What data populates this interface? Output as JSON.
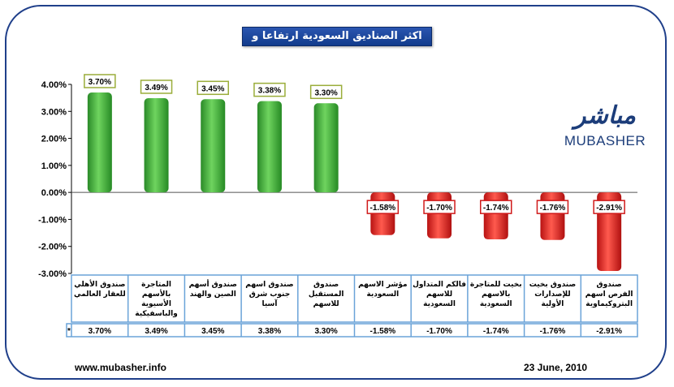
{
  "chart_data": {
    "type": "bar",
    "title": "اكثر الصناديق السعودية ارتفاعا و تراجعا",
    "categories": [
      [
        "صندوق الأهلي",
        "للعقار العالمي"
      ],
      [
        "المتاجرة",
        "بالأسهم",
        "الأسيوية",
        "والباسفيكية"
      ],
      [
        "صندوق أسهم",
        "الصين والهند"
      ],
      [
        "صندوق اسهم",
        "جنوب شرق",
        "آسيا"
      ],
      [
        "صندوق",
        "المستقبل",
        "للاسهم"
      ],
      [
        "مؤشر الاسهم",
        "السعودية"
      ],
      [
        "فالكم المتداول",
        "للاسهم",
        "السعودية"
      ],
      [
        "بخيت للمتاجرة",
        "بالاسهم",
        "السعودية"
      ],
      [
        "صندوق بخيت",
        "للإصدارات",
        "الأولية"
      ],
      [
        "صندوق",
        "الفرص اسهم",
        "البتروكيماوية"
      ]
    ],
    "values": [
      3.7,
      3.49,
      3.45,
      3.38,
      3.3,
      -1.58,
      -1.7,
      -1.74,
      -1.76,
      -2.91
    ],
    "data_labels": [
      "3.70%",
      "3.49%",
      "3.45%",
      "3.38%",
      "3.30%",
      "-1.58%",
      "-1.70%",
      "-1.74%",
      "-1.76%",
      "-2.91%"
    ],
    "table_values": [
      "3.70%",
      "3.49%",
      "3.45%",
      "3.38%",
      "3.30%",
      "-1.58%",
      "-1.70%",
      "-1.74%",
      "-1.76%",
      "-2.91%"
    ],
    "table_marker": "*",
    "yticks": [
      "4.00%",
      "3.00%",
      "2.00%",
      "1.00%",
      "0.00%",
      "-1.00%",
      "-2.00%",
      "-3.00%"
    ],
    "ytick_values": [
      4,
      3,
      2,
      1,
      0,
      -1,
      -2,
      -3
    ],
    "ylim": [
      -3,
      4
    ],
    "grid": false,
    "colors": {
      "positive": "#3aa635",
      "positive_light": "#6fd45f",
      "negative": "#e21e1e",
      "negative_light": "#ff6a5e",
      "positive_label_border": "#9aad3a",
      "negative_label_border": "#d01a1a",
      "table_border": "#6aa3d8"
    }
  },
  "logo": {
    "arabic": "مباشر",
    "english": "MUBASHER"
  },
  "footer": {
    "url": "www.mubasher.info",
    "date": "23 June, 2010"
  }
}
